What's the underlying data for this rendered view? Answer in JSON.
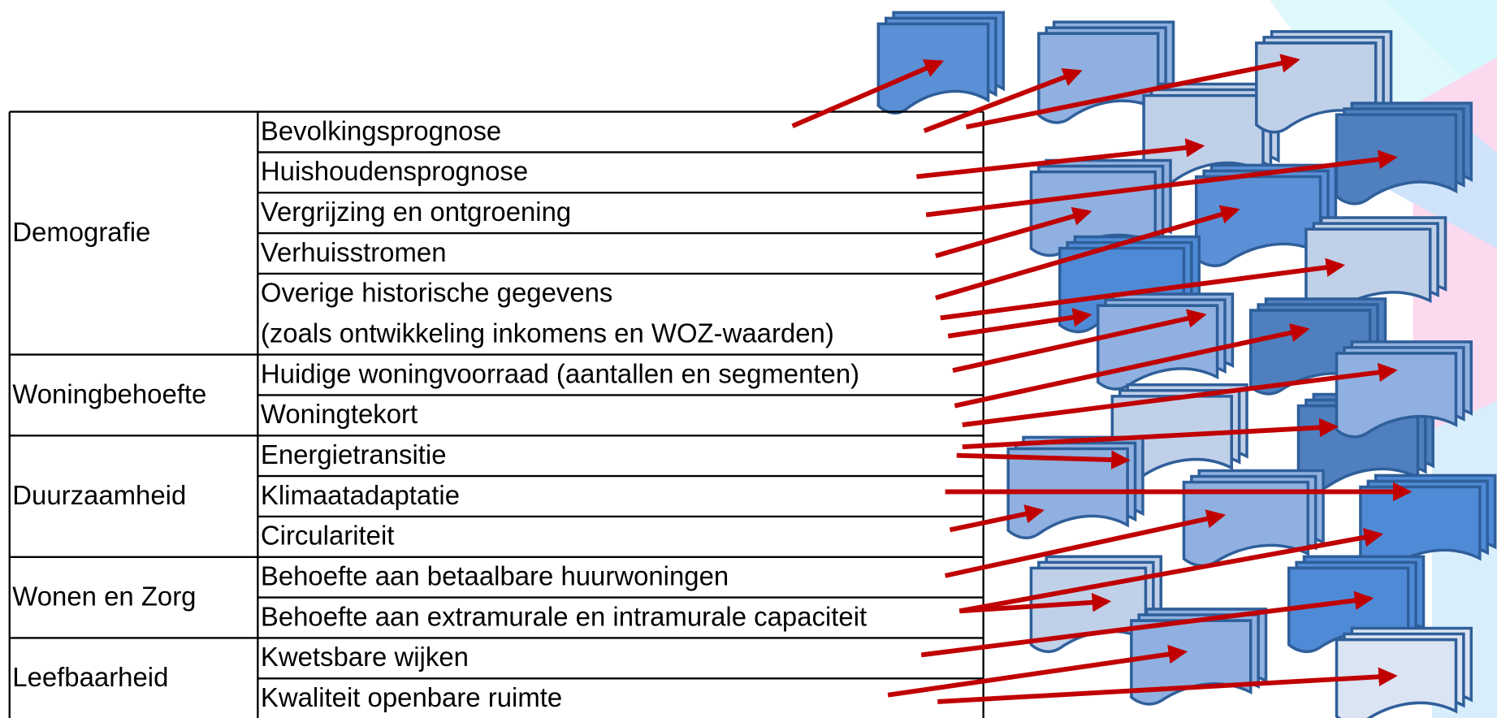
{
  "table": {
    "groups": [
      {
        "category": "Demografie",
        "items": [
          "Bevolkingsprognose",
          "Huishoudensprognose",
          "Vergrijzing en ontgroening",
          "Verhuisstromen",
          [
            "Overige historische gegevens",
            "(zoals ontwikkeling inkomens en WOZ-waarden)"
          ]
        ]
      },
      {
        "category": "Woningbehoefte",
        "items": [
          "Huidige woningvoorraad (aantallen en segmenten)",
          "Woningtekort"
        ]
      },
      {
        "category": "Duurzaamheid",
        "items": [
          "Energietransitie",
          "Klimaatadaptatie",
          "Circulariteit"
        ]
      },
      {
        "category": "Wonen en Zorg",
        "items": [
          "Behoefte aan betaalbare huurwoningen",
          "Behoefte aan extramurale en intramurale capaciteit"
        ]
      },
      {
        "category": "Leefbaarheid",
        "items": [
          "Kwetsbare wijken",
          "Kwaliteit openbare ruimte"
        ]
      }
    ]
  }
}
